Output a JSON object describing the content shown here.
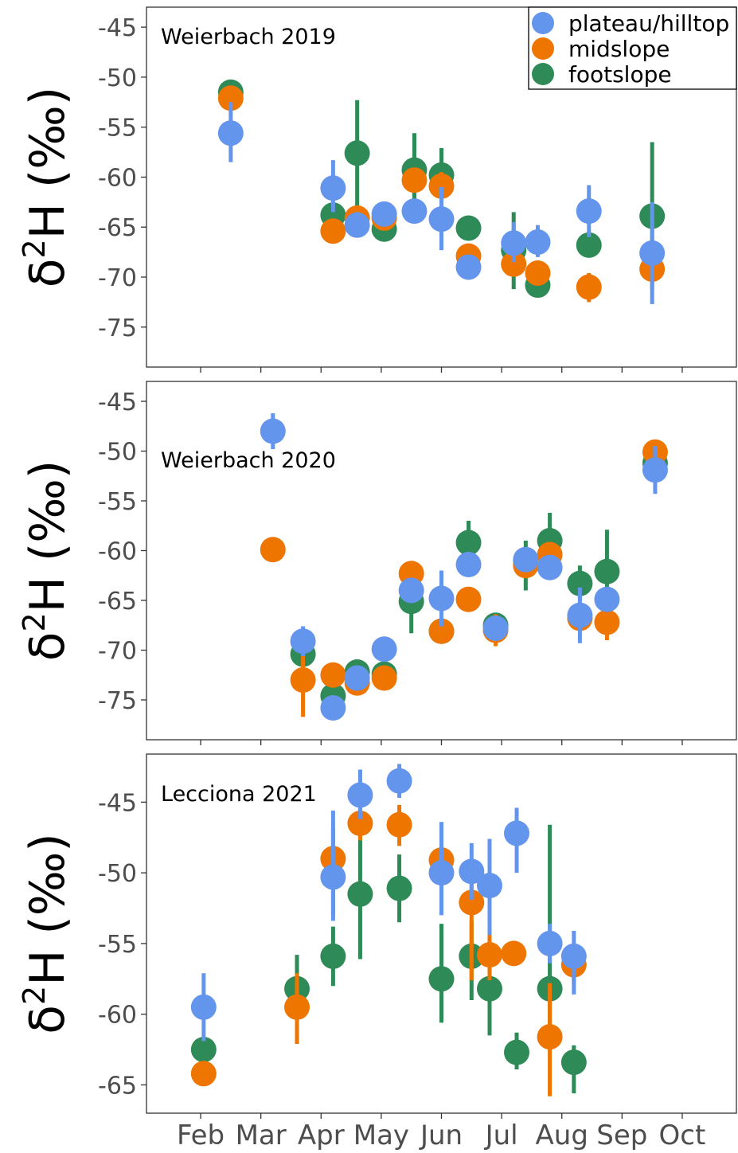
{
  "colors": {
    "plateau/hilltop": "#6495ED",
    "midslope": "#EE7600",
    "footslope": "#2E8B57"
  },
  "legend": [
    {
      "key": "plateau/hilltop",
      "label": "plateau/hilltop"
    },
    {
      "key": "midslope",
      "label": "midslope"
    },
    {
      "key": "footslope",
      "label": "footslope"
    }
  ],
  "y_axis_label": {
    "prefix": "δ",
    "sup": "2",
    "suffix": "H (‰)"
  },
  "x_tick_labels": [
    "Feb",
    "Mar",
    "Apr",
    "May",
    "Jun",
    "Jul",
    "Aug",
    "Sep",
    "Oct"
  ],
  "chart_data": [
    {
      "type": "scatter",
      "title": "Weierbach 2019",
      "xlabel": "",
      "ylabel": "δ2H (‰)",
      "x_unit": "month (Feb=2 … Oct=10)",
      "xlim": [
        1.1,
        10.9
      ],
      "ylim": [
        -79,
        -43
      ],
      "yticks": [
        -45,
        -50,
        -55,
        -60,
        -65,
        -70,
        -75
      ],
      "series": [
        {
          "name": "plateau/hilltop",
          "points": [
            {
              "x": 2.5,
              "y": -55.6,
              "lo": -58.5,
              "hi": -52.5
            },
            {
              "x": 4.2,
              "y": -61.1,
              "lo": -63.5,
              "hi": -58.3
            },
            {
              "x": 4.6,
              "y": -64.8,
              "lo": -66.0,
              "hi": -63.5
            },
            {
              "x": 5.05,
              "y": -63.7,
              "lo": -64.7,
              "hi": -62.7
            },
            {
              "x": 5.55,
              "y": -63.4,
              "lo": -64.4,
              "hi": -62.4
            },
            {
              "x": 6.0,
              "y": -64.2,
              "lo": -67.3,
              "hi": -61.0
            },
            {
              "x": 6.45,
              "y": -69.0,
              "lo": -69.8,
              "hi": -68.2
            },
            {
              "x": 7.2,
              "y": -66.6,
              "lo": -68.5,
              "hi": -64.5
            },
            {
              "x": 7.6,
              "y": -66.5,
              "lo": -68.0,
              "hi": -64.8
            },
            {
              "x": 8.45,
              "y": -63.4,
              "lo": -66.0,
              "hi": -60.8
            },
            {
              "x": 9.5,
              "y": -67.6,
              "lo": -72.7,
              "hi": -62.5
            }
          ]
        },
        {
          "name": "midslope",
          "points": [
            {
              "x": 2.5,
              "y": -52.1,
              "lo": -53.0,
              "hi": -51.2
            },
            {
              "x": 4.2,
              "y": -65.4,
              "lo": -66.2,
              "hi": -64.6
            },
            {
              "x": 4.6,
              "y": -64.1,
              "lo": -65.0,
              "hi": -63.2
            },
            {
              "x": 5.05,
              "y": -64.1,
              "lo": -65.3,
              "hi": -62.9
            },
            {
              "x": 5.55,
              "y": -60.3,
              "lo": -61.3,
              "hi": -59.3
            },
            {
              "x": 6.0,
              "y": -60.9,
              "lo": -62.3,
              "hi": -59.5
            },
            {
              "x": 6.45,
              "y": -67.9,
              "lo": -69.0,
              "hi": -66.8
            },
            {
              "x": 7.2,
              "y": -68.7,
              "lo": -69.7,
              "hi": -67.7
            },
            {
              "x": 7.6,
              "y": -69.6,
              "lo": -70.4,
              "hi": -68.8
            },
            {
              "x": 8.45,
              "y": -71.0,
              "lo": -72.5,
              "hi": -69.6
            },
            {
              "x": 9.5,
              "y": -69.2,
              "lo": -70.6,
              "hi": -67.8
            }
          ]
        },
        {
          "name": "footslope",
          "points": [
            {
              "x": 2.5,
              "y": -51.5,
              "lo": -52.1,
              "hi": -50.9
            },
            {
              "x": 4.2,
              "y": -63.8,
              "lo": -64.8,
              "hi": -62.8
            },
            {
              "x": 4.6,
              "y": -57.6,
              "lo": -63.8,
              "hi": -52.3
            },
            {
              "x": 5.05,
              "y": -65.2,
              "lo": -66.2,
              "hi": -64.2
            },
            {
              "x": 5.55,
              "y": -59.3,
              "lo": -62.9,
              "hi": -55.6
            },
            {
              "x": 6.0,
              "y": -59.8,
              "lo": -62.4,
              "hi": -57.1
            },
            {
              "x": 6.45,
              "y": -65.1,
              "lo": -66.1,
              "hi": -64.1
            },
            {
              "x": 7.2,
              "y": -67.3,
              "lo": -71.2,
              "hi": -63.5
            },
            {
              "x": 7.6,
              "y": -70.8,
              "lo": -71.6,
              "hi": -70.0
            },
            {
              "x": 8.45,
              "y": -66.8,
              "lo": -67.8,
              "hi": -65.8
            },
            {
              "x": 9.5,
              "y": -63.9,
              "lo": -71.2,
              "hi": -56.5
            }
          ]
        }
      ]
    },
    {
      "type": "scatter",
      "title": "Weierbach 2020",
      "xlabel": "",
      "ylabel": "δ2H (‰)",
      "x_unit": "month (Feb=2 … Oct=10)",
      "xlim": [
        1.1,
        10.9
      ],
      "ylim": [
        -79,
        -43
      ],
      "yticks": [
        -45,
        -50,
        -55,
        -60,
        -65,
        -70,
        -75
      ],
      "series": [
        {
          "name": "plateau/hilltop",
          "points": [
            {
              "x": 3.2,
              "y": -48.0,
              "lo": -49.8,
              "hi": -46.2
            },
            {
              "x": 3.7,
              "y": -69.1,
              "lo": -70.6,
              "hi": -67.6
            },
            {
              "x": 4.2,
              "y": -75.8,
              "lo": -76.6,
              "hi": -75.0
            },
            {
              "x": 4.6,
              "y": -72.8,
              "lo": -73.8,
              "hi": -71.8
            },
            {
              "x": 5.05,
              "y": -69.9,
              "lo": -70.9,
              "hi": -68.9
            },
            {
              "x": 5.5,
              "y": -64.0,
              "lo": -65.2,
              "hi": -62.8
            },
            {
              "x": 6.0,
              "y": -64.8,
              "lo": -67.6,
              "hi": -62.0
            },
            {
              "x": 6.45,
              "y": -61.4,
              "lo": -62.4,
              "hi": -60.4
            },
            {
              "x": 6.9,
              "y": -67.8,
              "lo": -68.6,
              "hi": -67.0
            },
            {
              "x": 7.4,
              "y": -60.9,
              "lo": -61.9,
              "hi": -59.9
            },
            {
              "x": 7.8,
              "y": -61.7,
              "lo": -62.7,
              "hi": -60.7
            },
            {
              "x": 8.3,
              "y": -66.5,
              "lo": -69.3,
              "hi": -63.7
            },
            {
              "x": 8.75,
              "y": -64.9,
              "lo": -65.9,
              "hi": -63.9
            },
            {
              "x": 9.55,
              "y": -51.9,
              "lo": -54.3,
              "hi": -49.5
            }
          ]
        },
        {
          "name": "midslope",
          "points": [
            {
              "x": 3.2,
              "y": -59.9,
              "lo": -60.5,
              "hi": -59.3
            },
            {
              "x": 3.7,
              "y": -73.0,
              "lo": -76.7,
              "hi": -69.3
            },
            {
              "x": 4.2,
              "y": -72.5,
              "lo": -73.5,
              "hi": -71.5
            },
            {
              "x": 4.6,
              "y": -73.3,
              "lo": -74.5,
              "hi": -72.1
            },
            {
              "x": 5.05,
              "y": -72.8,
              "lo": -73.6,
              "hi": -72.0
            },
            {
              "x": 5.5,
              "y": -62.3,
              "lo": -63.3,
              "hi": -61.3
            },
            {
              "x": 6.0,
              "y": -68.1,
              "lo": -69.1,
              "hi": -67.1
            },
            {
              "x": 6.45,
              "y": -64.9,
              "lo": -65.7,
              "hi": -64.1
            },
            {
              "x": 6.9,
              "y": -68.0,
              "lo": -69.6,
              "hi": -66.4
            },
            {
              "x": 7.4,
              "y": -61.5,
              "lo": -62.5,
              "hi": -60.5
            },
            {
              "x": 7.8,
              "y": -60.4,
              "lo": -61.4,
              "hi": -59.4
            },
            {
              "x": 8.3,
              "y": -66.8,
              "lo": -68.0,
              "hi": -65.6
            },
            {
              "x": 8.75,
              "y": -67.2,
              "lo": -69.0,
              "hi": -65.4
            },
            {
              "x": 9.55,
              "y": -50.1,
              "lo": -50.9,
              "hi": -49.3
            }
          ]
        },
        {
          "name": "footslope",
          "points": [
            {
              "x": 3.7,
              "y": -70.4,
              "lo": -71.4,
              "hi": -69.4
            },
            {
              "x": 4.2,
              "y": -74.6,
              "lo": -76.4,
              "hi": -72.8
            },
            {
              "x": 4.6,
              "y": -72.2,
              "lo": -73.2,
              "hi": -71.2
            },
            {
              "x": 5.05,
              "y": -72.4,
              "lo": -73.4,
              "hi": -71.4
            },
            {
              "x": 5.5,
              "y": -65.1,
              "lo": -68.3,
              "hi": -63.3
            },
            {
              "x": 6.0,
              "y": -68.1,
              "lo": -69.1,
              "hi": -67.1
            },
            {
              "x": 6.45,
              "y": -59.2,
              "lo": -61.4,
              "hi": -57.0
            },
            {
              "x": 6.9,
              "y": -67.5,
              "lo": -68.5,
              "hi": -66.5
            },
            {
              "x": 7.4,
              "y": -61.0,
              "lo": -64.0,
              "hi": -59.0
            },
            {
              "x": 7.8,
              "y": -59.0,
              "lo": -61.8,
              "hi": -56.2
            },
            {
              "x": 8.3,
              "y": -63.3,
              "lo": -65.1,
              "hi": -61.5
            },
            {
              "x": 8.75,
              "y": -62.1,
              "lo": -66.3,
              "hi": -57.9
            },
            {
              "x": 9.55,
              "y": -51.2,
              "lo": -52.2,
              "hi": -50.2
            }
          ]
        }
      ]
    },
    {
      "type": "scatter",
      "title": "Lecciona 2021",
      "xlabel": "",
      "ylabel": "δ2H (‰)",
      "x_unit": "month (Feb=2 … Oct=10)",
      "xlim": [
        1.1,
        10.9
      ],
      "ylim": [
        -67,
        -41.6
      ],
      "yticks": [
        -45,
        -50,
        -55,
        -60,
        -65
      ],
      "series": [
        {
          "name": "plateau/hilltop",
          "points": [
            {
              "x": 2.05,
              "y": -59.5,
              "lo": -61.9,
              "hi": -57.1
            },
            {
              "x": 4.2,
              "y": -50.3,
              "lo": -53.4,
              "hi": -45.6
            },
            {
              "x": 4.65,
              "y": -44.5,
              "lo": -46.2,
              "hi": -42.7
            },
            {
              "x": 5.3,
              "y": -43.5,
              "lo": -44.7,
              "hi": -42.3
            },
            {
              "x": 6.0,
              "y": -50.0,
              "lo": -53.0,
              "hi": -46.4
            },
            {
              "x": 6.5,
              "y": -49.9,
              "lo": -51.9,
              "hi": -47.9
            },
            {
              "x": 6.8,
              "y": -50.9,
              "lo": -54.4,
              "hi": -47.6
            },
            {
              "x": 7.25,
              "y": -47.2,
              "lo": -50.0,
              "hi": -45.4
            },
            {
              "x": 7.8,
              "y": -55.0,
              "lo": -56.4,
              "hi": -53.6
            },
            {
              "x": 8.2,
              "y": -55.9,
              "lo": -58.6,
              "hi": -54.1
            }
          ]
        },
        {
          "name": "midslope",
          "points": [
            {
              "x": 2.05,
              "y": -64.2,
              "lo": -64.8,
              "hi": -63.6
            },
            {
              "x": 3.6,
              "y": -59.5,
              "lo": -62.1,
              "hi": -57.1
            },
            {
              "x": 4.2,
              "y": -49.0,
              "lo": -53.0,
              "hi": -46.8
            },
            {
              "x": 4.65,
              "y": -46.5,
              "lo": -47.7,
              "hi": -45.3
            },
            {
              "x": 5.3,
              "y": -46.6,
              "lo": -48.1,
              "hi": -45.2
            },
            {
              "x": 6.0,
              "y": -49.1,
              "lo": -51.5,
              "hi": -46.7
            },
            {
              "x": 6.5,
              "y": -52.1,
              "lo": -57.6,
              "hi": -49.7
            },
            {
              "x": 6.8,
              "y": -55.8,
              "lo": -57.6,
              "hi": -54.0
            },
            {
              "x": 7.2,
              "y": -55.7,
              "lo": -56.1,
              "hi": -55.3
            },
            {
              "x": 7.8,
              "y": -61.6,
              "lo": -65.8,
              "hi": -57.8
            },
            {
              "x": 8.2,
              "y": -56.5,
              "lo": -57.9,
              "hi": -55.1
            }
          ]
        },
        {
          "name": "footslope",
          "points": [
            {
              "x": 2.05,
              "y": -62.5,
              "lo": -63.1,
              "hi": -61.9
            },
            {
              "x": 3.6,
              "y": -58.2,
              "lo": -59.6,
              "hi": -55.8
            },
            {
              "x": 4.2,
              "y": -55.9,
              "lo": -58.0,
              "hi": -53.8
            },
            {
              "x": 4.65,
              "y": -51.5,
              "lo": -56.1,
              "hi": -47.4
            },
            {
              "x": 5.3,
              "y": -51.1,
              "lo": -53.5,
              "hi": -48.7
            },
            {
              "x": 6.0,
              "y": -57.5,
              "lo": -60.6,
              "hi": -53.6
            },
            {
              "x": 6.5,
              "y": -55.9,
              "lo": -59.0,
              "hi": -53.4
            },
            {
              "x": 6.8,
              "y": -58.2,
              "lo": -61.5,
              "hi": -55.6
            },
            {
              "x": 7.25,
              "y": -62.7,
              "lo": -63.9,
              "hi": -61.3
            },
            {
              "x": 7.8,
              "y": -58.2,
              "lo": -61.4,
              "hi": -46.6
            },
            {
              "x": 8.2,
              "y": -63.4,
              "lo": -65.6,
              "hi": -62.2
            }
          ]
        }
      ]
    }
  ]
}
